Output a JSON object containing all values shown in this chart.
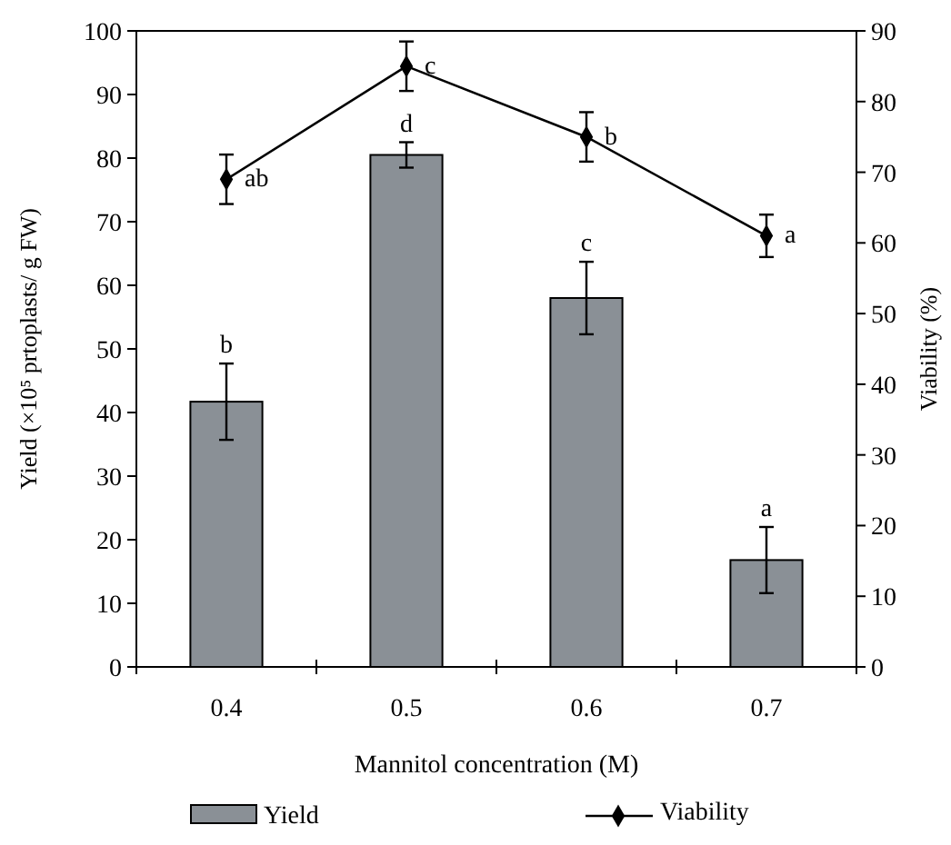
{
  "chart_data": {
    "type": "bar",
    "xlabel": "Mannitol concentration (M)",
    "ylabel": "Yield (×10⁵ prtoplasts/ g FW)",
    "y2label": "Viability (%)",
    "categories": [
      "0.4",
      "0.5",
      "0.6",
      "0.7"
    ],
    "series": [
      {
        "name": "Yield",
        "color": "#8a9096",
        "values": [
          41.7,
          80.5,
          58,
          16.8
        ],
        "errors": [
          6,
          2,
          5.7,
          5.2
        ]
      },
      {
        "name": "Viability",
        "type": "line",
        "axis": "y2",
        "color": "#000000",
        "marker": "diamond",
        "values": [
          69,
          85,
          75,
          61
        ],
        "errors": [
          3.5,
          3.5,
          3.5,
          3
        ]
      }
    ],
    "ylim": [
      0,
      100
    ],
    "yticks": [
      0,
      10,
      20,
      30,
      40,
      50,
      60,
      70,
      80,
      90,
      100
    ],
    "y2lim": [
      0,
      90
    ],
    "y2ticks": [
      0,
      10,
      20,
      30,
      40,
      50,
      60,
      70,
      80,
      90
    ],
    "grid": false,
    "legend": "bottom",
    "annotations": [
      {
        "text": "b",
        "x": "0.4",
        "y": 47.7
      },
      {
        "text": "d",
        "x": "0.5",
        "y": 82.5
      },
      {
        "text": "c",
        "x": "0.6",
        "y": 63.7
      },
      {
        "text": "a",
        "x": "0.7",
        "y": 22
      },
      {
        "text": "ab",
        "x": "0.4",
        "y": 76.7
      },
      {
        "text": "c",
        "x": "0.5",
        "y": 94.4
      },
      {
        "text": "b",
        "x": "0.6",
        "y": 83.3
      },
      {
        "text": "a",
        "x": "0.7",
        "y": 67.8
      }
    ]
  }
}
